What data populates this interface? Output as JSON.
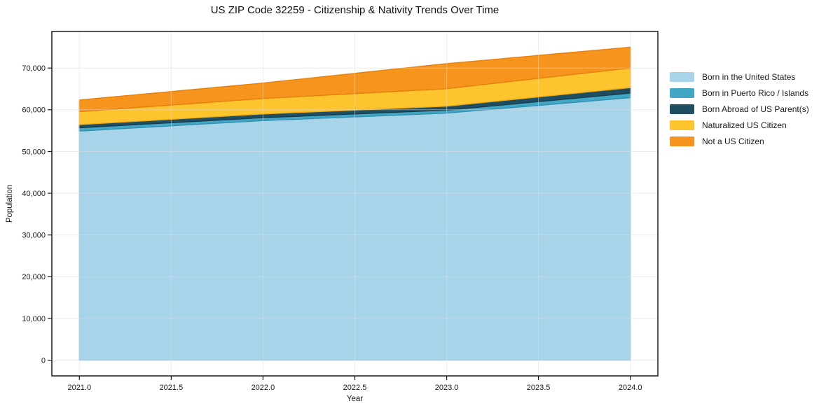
{
  "chart_data": {
    "type": "area",
    "stacked": true,
    "title": "US ZIP Code 32259 - Citizenship & Nativity Trends Over Time",
    "xlabel": "Year",
    "ylabel": "Population",
    "x": [
      2021,
      2022,
      2023,
      2024
    ],
    "series": [
      {
        "name": "Born in the United States",
        "values": [
          54900,
          57400,
          59200,
          62900
        ],
        "color": "#A7D4E9",
        "edge": "#8CC3DD"
      },
      {
        "name": "Born in Puerto Rico / Islands",
        "values": [
          800,
          700,
          700,
          1100
        ],
        "color": "#42A6C5",
        "edge": "#3291B0"
      },
      {
        "name": "Born Abroad of US Parent(s)",
        "values": [
          750,
          900,
          950,
          1300
        ],
        "color": "#1F4E63",
        "edge": "#173C4D"
      },
      {
        "name": "Naturalized US Citizen",
        "values": [
          3100,
          3700,
          4200,
          4700
        ],
        "color": "#FDC42D",
        "edge": "#EFAC12"
      },
      {
        "name": "Not a US Citizen",
        "values": [
          2800,
          3700,
          6000,
          5000
        ],
        "color": "#F7941E",
        "edge": "#E3800D"
      }
    ],
    "totals": [
      62350,
      66400,
      71050,
      75000
    ],
    "xlim": [
      2020.85,
      2024.15
    ],
    "ylim": [
      -3750,
      78750
    ],
    "xticks": {
      "values": [
        2021.0,
        2021.5,
        2022.0,
        2022.5,
        2023.0,
        2023.5,
        2024.0
      ],
      "labels": [
        "2021.0",
        "2021.5",
        "2022.0",
        "2022.5",
        "2023.0",
        "2023.5",
        "2024.0"
      ]
    },
    "yticks": {
      "values": [
        0,
        10000,
        20000,
        30000,
        40000,
        50000,
        60000,
        70000
      ],
      "labels": [
        "0",
        "10,000",
        "20,000",
        "30,000",
        "40,000",
        "50,000",
        "60,000",
        "70,000"
      ]
    },
    "grid": true,
    "legend_position": "right",
    "colors": {
      "axis": "#1a1a1a",
      "grid_over_white": "#e9e9e9",
      "gridline": "#dcdcdc",
      "background": "#ffffff"
    }
  }
}
